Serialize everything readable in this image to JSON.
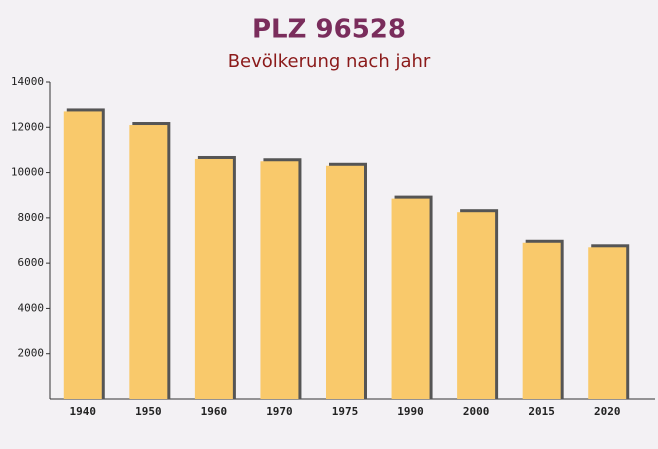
{
  "chart_data": {
    "type": "bar",
    "title": "PLZ 96528",
    "subtitle": "Bevölkerung nach jahr",
    "categories": [
      "1940",
      "1950",
      "1960",
      "1970",
      "1975",
      "1990",
      "2000",
      "2015",
      "2020"
    ],
    "values": [
      12700,
      12100,
      10600,
      10500,
      10300,
      8850,
      8250,
      6900,
      6700
    ],
    "color": "#f9c96b",
    "ylim": [
      0,
      14000
    ],
    "yticks": [
      2000,
      4000,
      6000,
      8000,
      10000,
      12000,
      14000
    ]
  }
}
